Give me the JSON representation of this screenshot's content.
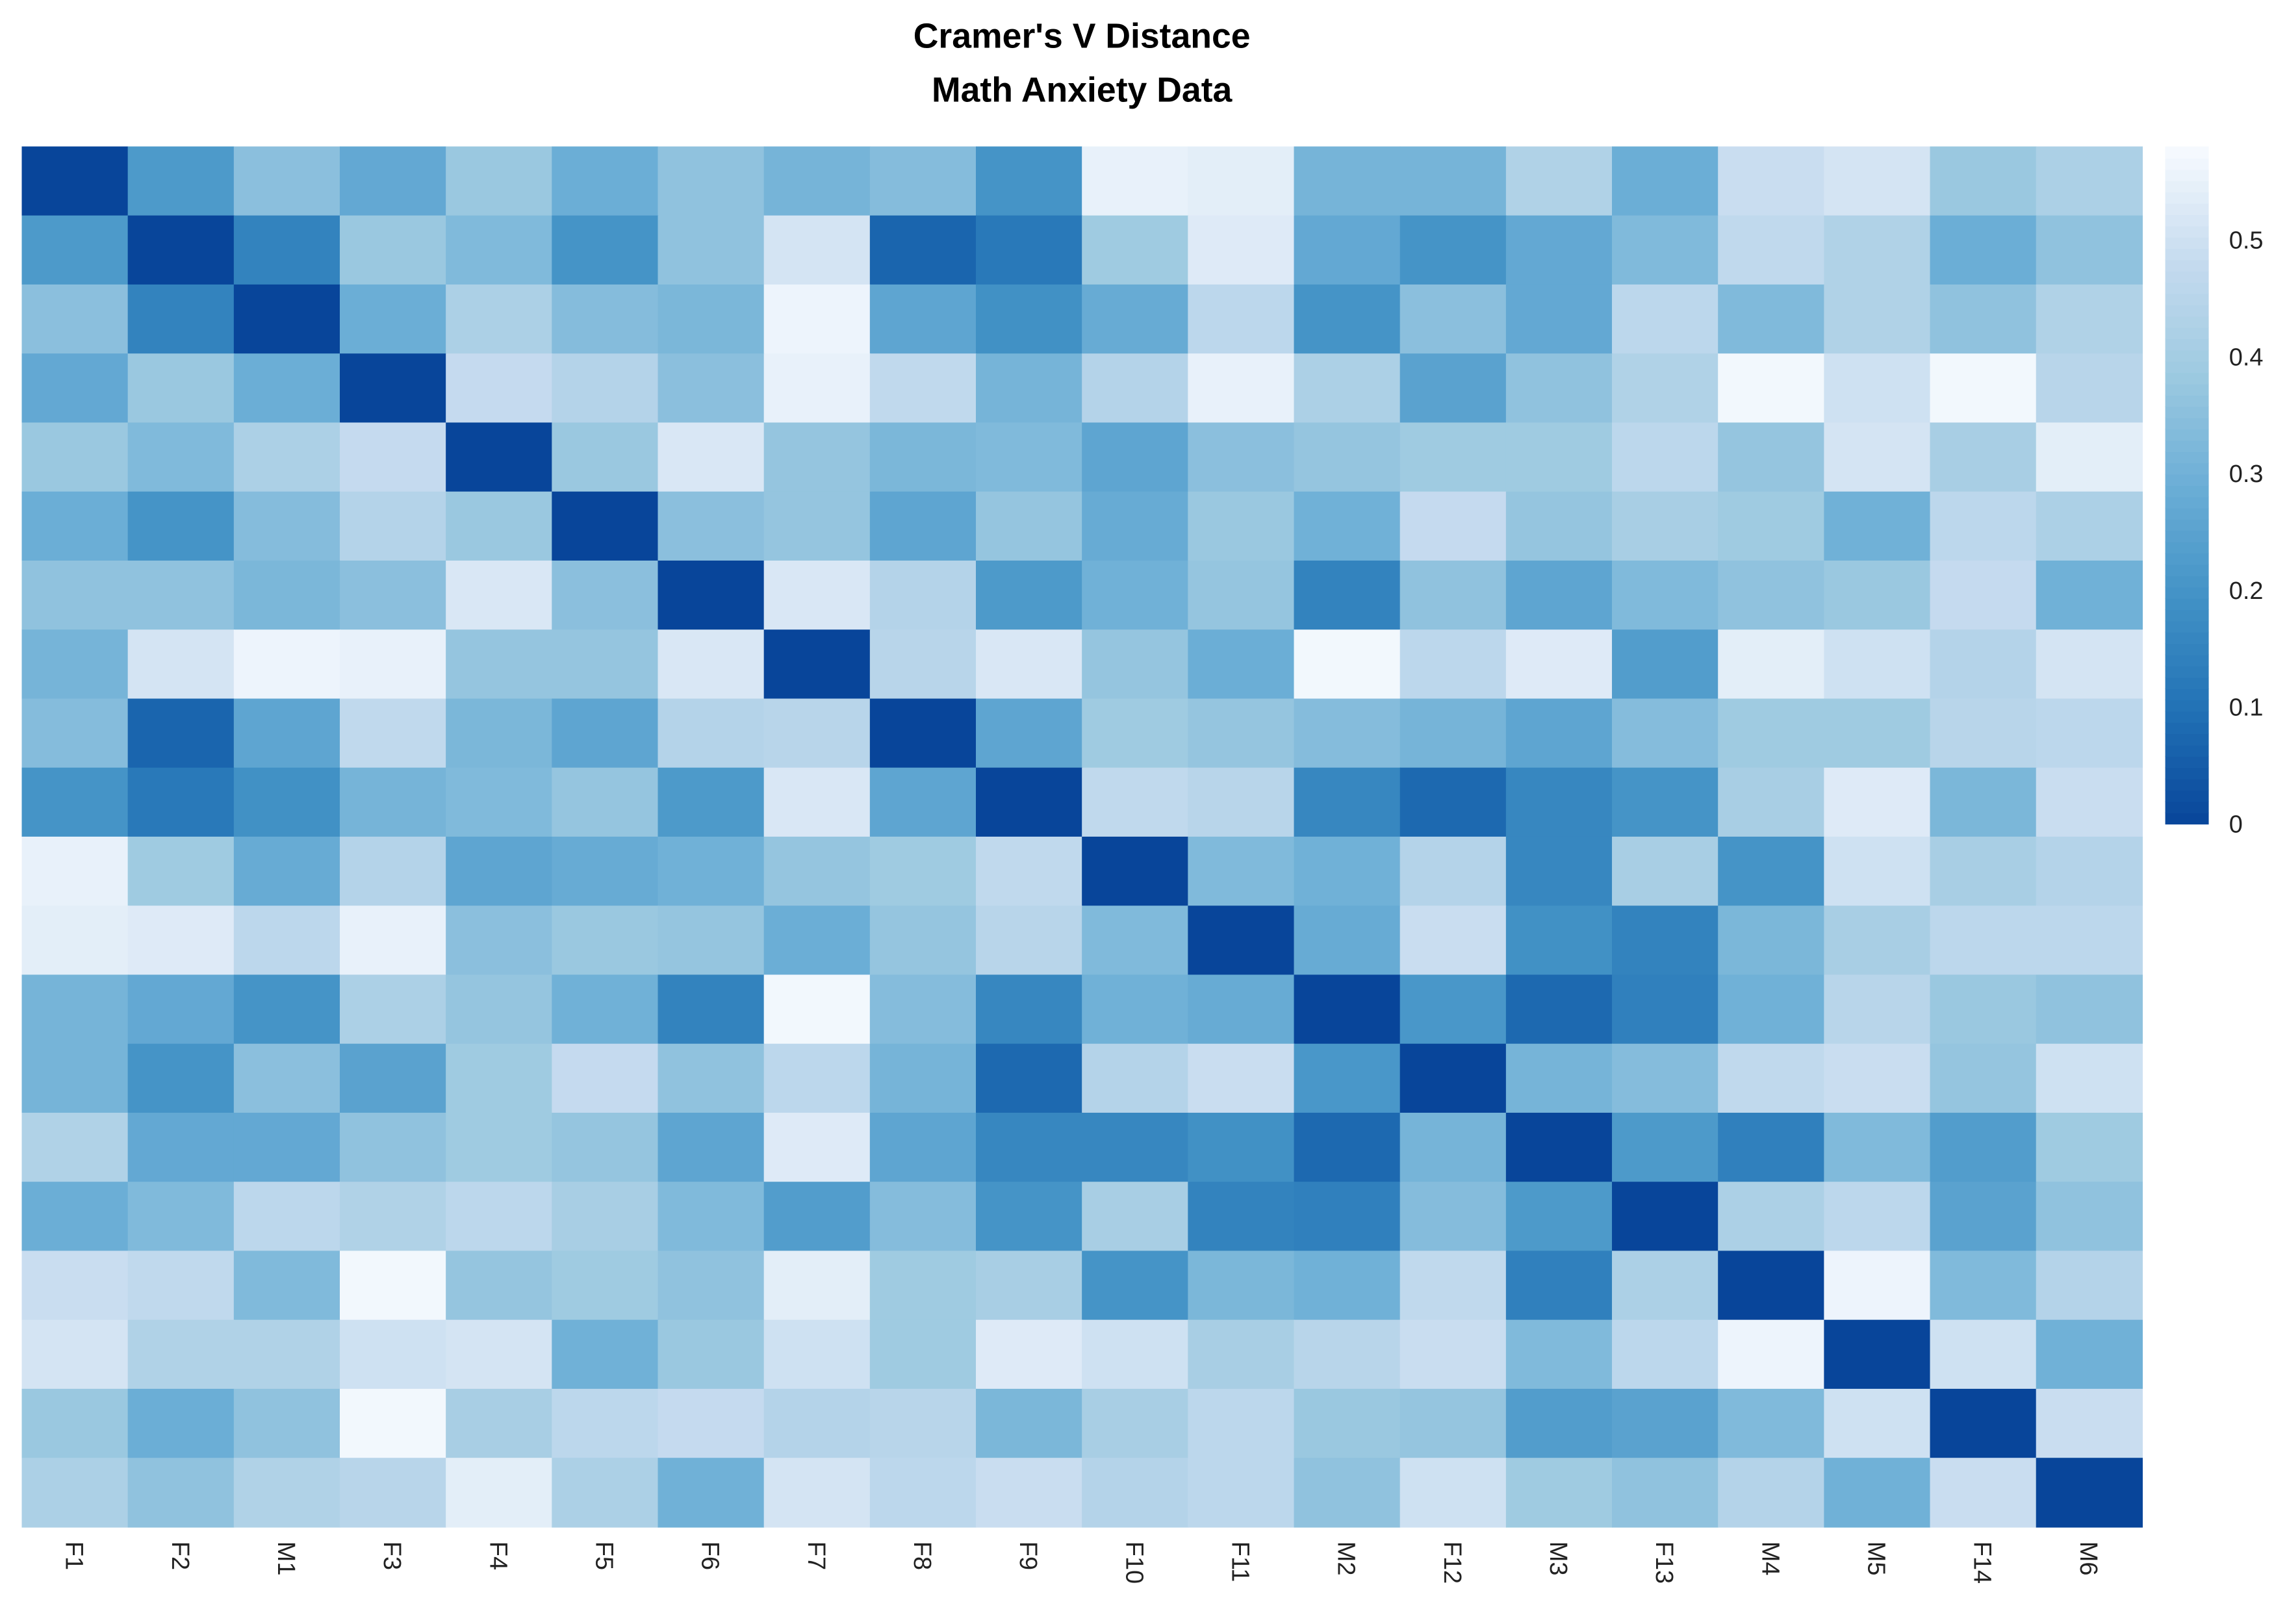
{
  "chart_data": {
    "type": "heatmap",
    "title": "Cramer's V Distance",
    "subtitle": "Math Anxiety Data",
    "labels": [
      "F1",
      "F2",
      "M1",
      "F3",
      "F4",
      "F5",
      "F6",
      "F7",
      "F8",
      "F9",
      "F10",
      "F11",
      "M2",
      "F12",
      "M3",
      "F13",
      "M4",
      "M5",
      "F14",
      "M6"
    ],
    "colorscale": {
      "low": "#08459a",
      "high": "#f7fbff",
      "range": [
        0,
        0.58
      ],
      "ticks": [
        0,
        0.1,
        0.2,
        0.3,
        0.4,
        0.5
      ]
    },
    "legend": "right",
    "matrix": [
      [
        0,
        0.22,
        0.35,
        0.27,
        0.38,
        0.29,
        0.36,
        0.31,
        0.34,
        0.2,
        0.55,
        0.54,
        0.31,
        0.31,
        0.43,
        0.29,
        0.49,
        0.51,
        0.38,
        0.42
      ],
      [
        0.22,
        0,
        0.15,
        0.38,
        0.33,
        0.2,
        0.36,
        0.51,
        0.07,
        0.12,
        0.39,
        0.53,
        0.27,
        0.2,
        0.27,
        0.33,
        0.47,
        0.43,
        0.29,
        0.36
      ],
      [
        0.35,
        0.15,
        0,
        0.29,
        0.42,
        0.34,
        0.32,
        0.56,
        0.26,
        0.19,
        0.28,
        0.46,
        0.2,
        0.35,
        0.27,
        0.46,
        0.33,
        0.43,
        0.36,
        0.43
      ],
      [
        0.27,
        0.38,
        0.29,
        0,
        0.48,
        0.44,
        0.35,
        0.55,
        0.47,
        0.31,
        0.44,
        0.55,
        0.42,
        0.25,
        0.36,
        0.43,
        0.57,
        0.5,
        0.57,
        0.45
      ],
      [
        0.38,
        0.33,
        0.42,
        0.48,
        0,
        0.38,
        0.52,
        0.37,
        0.32,
        0.33,
        0.26,
        0.35,
        0.37,
        0.39,
        0.39,
        0.46,
        0.37,
        0.51,
        0.41,
        0.54
      ],
      [
        0.29,
        0.2,
        0.34,
        0.44,
        0.38,
        0,
        0.35,
        0.37,
        0.26,
        0.37,
        0.28,
        0.38,
        0.3,
        0.48,
        0.37,
        0.41,
        0.39,
        0.3,
        0.46,
        0.42
      ],
      [
        0.36,
        0.36,
        0.32,
        0.35,
        0.52,
        0.35,
        0,
        0.52,
        0.44,
        0.22,
        0.3,
        0.37,
        0.15,
        0.36,
        0.26,
        0.33,
        0.36,
        0.38,
        0.48,
        0.3
      ],
      [
        0.31,
        0.51,
        0.56,
        0.55,
        0.37,
        0.37,
        0.52,
        0,
        0.45,
        0.52,
        0.37,
        0.29,
        0.57,
        0.46,
        0.53,
        0.23,
        0.54,
        0.5,
        0.44,
        0.51
      ],
      [
        0.34,
        0.07,
        0.26,
        0.47,
        0.32,
        0.26,
        0.44,
        0.45,
        0,
        0.26,
        0.39,
        0.37,
        0.34,
        0.31,
        0.26,
        0.34,
        0.39,
        0.39,
        0.45,
        0.46
      ],
      [
        0.2,
        0.12,
        0.19,
        0.31,
        0.33,
        0.37,
        0.22,
        0.52,
        0.26,
        0,
        0.47,
        0.45,
        0.16,
        0.08,
        0.16,
        0.2,
        0.41,
        0.53,
        0.32,
        0.49
      ],
      [
        0.55,
        0.39,
        0.28,
        0.44,
        0.26,
        0.28,
        0.3,
        0.37,
        0.39,
        0.47,
        0,
        0.33,
        0.3,
        0.44,
        0.16,
        0.41,
        0.2,
        0.5,
        0.41,
        0.44
      ],
      [
        0.54,
        0.53,
        0.46,
        0.55,
        0.35,
        0.38,
        0.37,
        0.29,
        0.37,
        0.45,
        0.33,
        0,
        0.28,
        0.49,
        0.19,
        0.15,
        0.32,
        0.41,
        0.46,
        0.46
      ],
      [
        0.31,
        0.27,
        0.2,
        0.42,
        0.37,
        0.3,
        0.15,
        0.57,
        0.34,
        0.16,
        0.3,
        0.28,
        0,
        0.21,
        0.08,
        0.14,
        0.3,
        0.45,
        0.38,
        0.36
      ],
      [
        0.31,
        0.2,
        0.35,
        0.25,
        0.39,
        0.48,
        0.36,
        0.46,
        0.31,
        0.08,
        0.44,
        0.49,
        0.21,
        0,
        0.31,
        0.34,
        0.47,
        0.49,
        0.37,
        0.5
      ],
      [
        0.43,
        0.27,
        0.27,
        0.36,
        0.39,
        0.37,
        0.26,
        0.53,
        0.26,
        0.16,
        0.16,
        0.19,
        0.08,
        0.31,
        0,
        0.22,
        0.14,
        0.33,
        0.23,
        0.39
      ],
      [
        0.29,
        0.33,
        0.46,
        0.43,
        0.46,
        0.41,
        0.33,
        0.23,
        0.34,
        0.2,
        0.41,
        0.15,
        0.14,
        0.34,
        0.22,
        0,
        0.42,
        0.46,
        0.25,
        0.36
      ],
      [
        0.49,
        0.47,
        0.33,
        0.57,
        0.37,
        0.39,
        0.36,
        0.54,
        0.39,
        0.41,
        0.2,
        0.32,
        0.3,
        0.47,
        0.14,
        0.42,
        0,
        0.56,
        0.33,
        0.44
      ],
      [
        0.51,
        0.43,
        0.43,
        0.5,
        0.51,
        0.3,
        0.38,
        0.5,
        0.39,
        0.53,
        0.5,
        0.41,
        0.45,
        0.49,
        0.33,
        0.46,
        0.56,
        0,
        0.5,
        0.3
      ],
      [
        0.38,
        0.29,
        0.36,
        0.57,
        0.41,
        0.46,
        0.48,
        0.44,
        0.45,
        0.32,
        0.41,
        0.46,
        0.38,
        0.37,
        0.23,
        0.25,
        0.33,
        0.5,
        0,
        0.49
      ],
      [
        0.42,
        0.36,
        0.43,
        0.45,
        0.54,
        0.42,
        0.3,
        0.51,
        0.46,
        0.49,
        0.44,
        0.46,
        0.36,
        0.5,
        0.39,
        0.36,
        0.44,
        0.3,
        0.49,
        0
      ]
    ]
  }
}
